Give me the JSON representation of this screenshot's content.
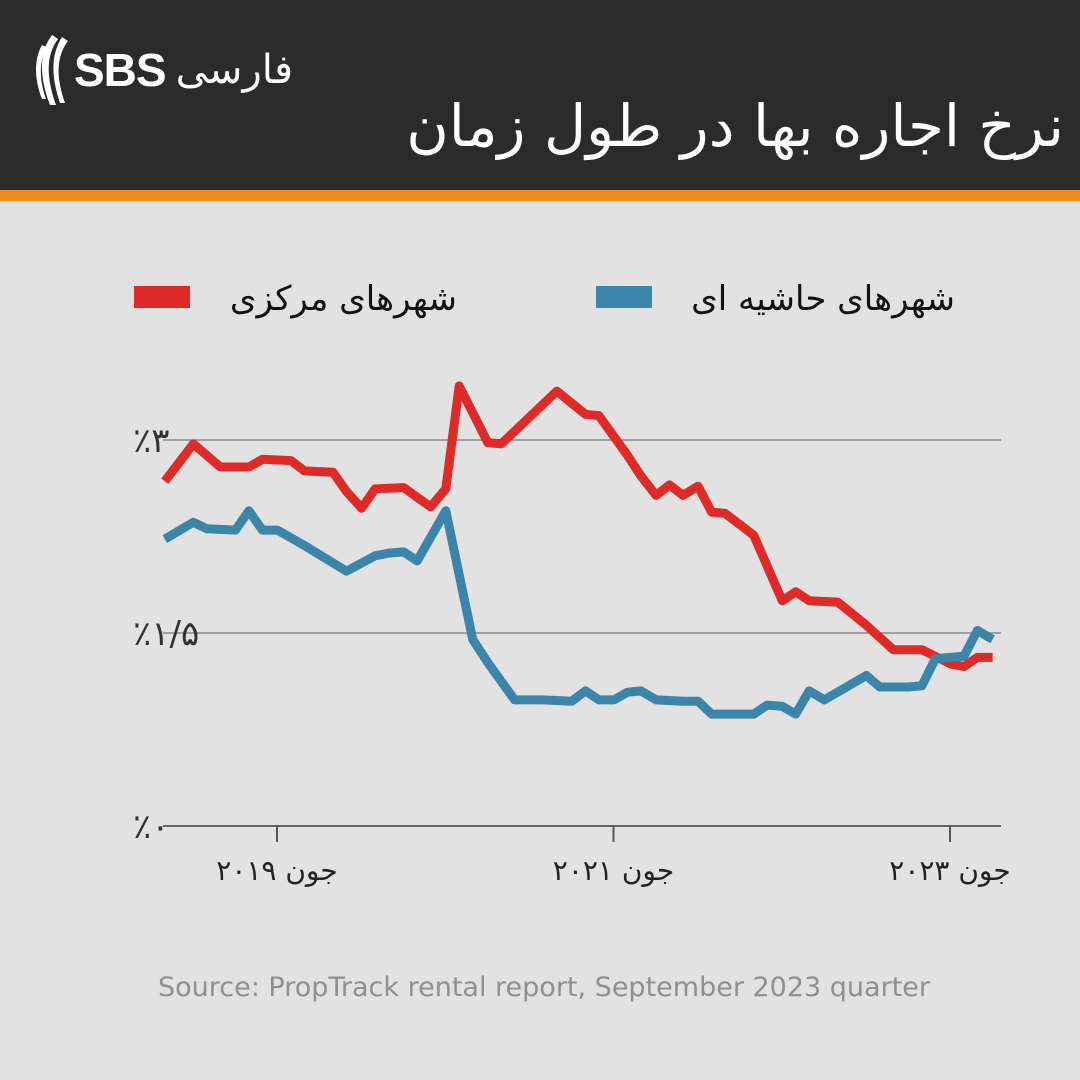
{
  "header": {
    "logo_text": "SBS",
    "logo_farsi": "فارسی",
    "title": "نرخ اجاره بها در طول زمان",
    "accent_color": "#f28b24",
    "background_color": "#2b2b2b"
  },
  "chart_data": {
    "type": "line",
    "title": "نرخ اجاره بها در طول زمان",
    "xlabel": "",
    "ylabel": "",
    "ylim": [
      0,
      3.5
    ],
    "y_ticks": [
      0,
      1.5,
      3
    ],
    "y_tick_labels": [
      "٪۰",
      "٪۱/۵",
      "٪۳"
    ],
    "x_ticks": [
      2019.417,
      2021.417,
      2023.417
    ],
    "x_tick_labels": [
      "جون ۲۰۱۹",
      "جون ۲۰۲۱",
      "جون ۲۰۲۳"
    ],
    "grid": "horizontal",
    "legend_position": "top",
    "series": [
      {
        "name": "شهرهای مرکزی",
        "color": "#e02a27",
        "points": [
          [
            2018.75,
            2.68
          ],
          [
            2018.92,
            2.97
          ],
          [
            2019.08,
            2.79
          ],
          [
            2019.25,
            2.79
          ],
          [
            2019.33,
            2.85
          ],
          [
            2019.5,
            2.84
          ],
          [
            2019.58,
            2.76
          ],
          [
            2019.75,
            2.75
          ],
          [
            2019.83,
            2.6
          ],
          [
            2019.92,
            2.47
          ],
          [
            2020.0,
            2.62
          ],
          [
            2020.17,
            2.63
          ],
          [
            2020.33,
            2.48
          ],
          [
            2020.42,
            2.62
          ],
          [
            2020.5,
            3.42
          ],
          [
            2020.67,
            2.98
          ],
          [
            2020.75,
            2.97
          ],
          [
            2021.08,
            3.38
          ],
          [
            2021.25,
            3.2
          ],
          [
            2021.33,
            3.19
          ],
          [
            2021.5,
            2.88
          ],
          [
            2021.58,
            2.72
          ],
          [
            2021.67,
            2.57
          ],
          [
            2021.75,
            2.65
          ],
          [
            2021.83,
            2.57
          ],
          [
            2021.92,
            2.64
          ],
          [
            2022.0,
            2.44
          ],
          [
            2022.08,
            2.43
          ],
          [
            2022.25,
            2.26
          ],
          [
            2022.42,
            1.75
          ],
          [
            2022.5,
            1.82
          ],
          [
            2022.58,
            1.75
          ],
          [
            2022.75,
            1.74
          ],
          [
            2022.92,
            1.56
          ],
          [
            2023.08,
            1.37
          ],
          [
            2023.25,
            1.37
          ],
          [
            2023.42,
            1.26
          ],
          [
            2023.5,
            1.24
          ],
          [
            2023.58,
            1.31
          ],
          [
            2023.67,
            1.31
          ]
        ]
      },
      {
        "name": "شهرهای حاشیه ای",
        "color": "#3b84aa",
        "points": [
          [
            2018.75,
            2.23
          ],
          [
            2018.92,
            2.36
          ],
          [
            2019.0,
            2.31
          ],
          [
            2019.17,
            2.3
          ],
          [
            2019.25,
            2.45
          ],
          [
            2019.33,
            2.3
          ],
          [
            2019.42,
            2.3
          ],
          [
            2019.58,
            2.18
          ],
          [
            2019.83,
            1.98
          ],
          [
            2020.0,
            2.1
          ],
          [
            2020.08,
            2.12
          ],
          [
            2020.17,
            2.13
          ],
          [
            2020.25,
            2.06
          ],
          [
            2020.42,
            2.45
          ],
          [
            2020.58,
            1.45
          ],
          [
            2020.67,
            1.27
          ],
          [
            2020.83,
            0.98
          ],
          [
            2021.0,
            0.98
          ],
          [
            2021.17,
            0.97
          ],
          [
            2021.25,
            1.05
          ],
          [
            2021.33,
            0.98
          ],
          [
            2021.42,
            0.98
          ],
          [
            2021.5,
            1.04
          ],
          [
            2021.58,
            1.05
          ],
          [
            2021.67,
            0.98
          ],
          [
            2021.83,
            0.97
          ],
          [
            2021.92,
            0.97
          ],
          [
            2022.0,
            0.87
          ],
          [
            2022.25,
            0.87
          ],
          [
            2022.33,
            0.94
          ],
          [
            2022.42,
            0.93
          ],
          [
            2022.5,
            0.87
          ],
          [
            2022.58,
            1.05
          ],
          [
            2022.67,
            0.98
          ],
          [
            2022.92,
            1.17
          ],
          [
            2023.0,
            1.08
          ],
          [
            2023.17,
            1.08
          ],
          [
            2023.25,
            1.09
          ],
          [
            2023.33,
            1.3
          ],
          [
            2023.42,
            1.31
          ],
          [
            2023.5,
            1.32
          ],
          [
            2023.58,
            1.52
          ],
          [
            2023.67,
            1.45
          ]
        ]
      }
    ],
    "source": "Source: PropTrack rental report, September 2023 quarter"
  }
}
